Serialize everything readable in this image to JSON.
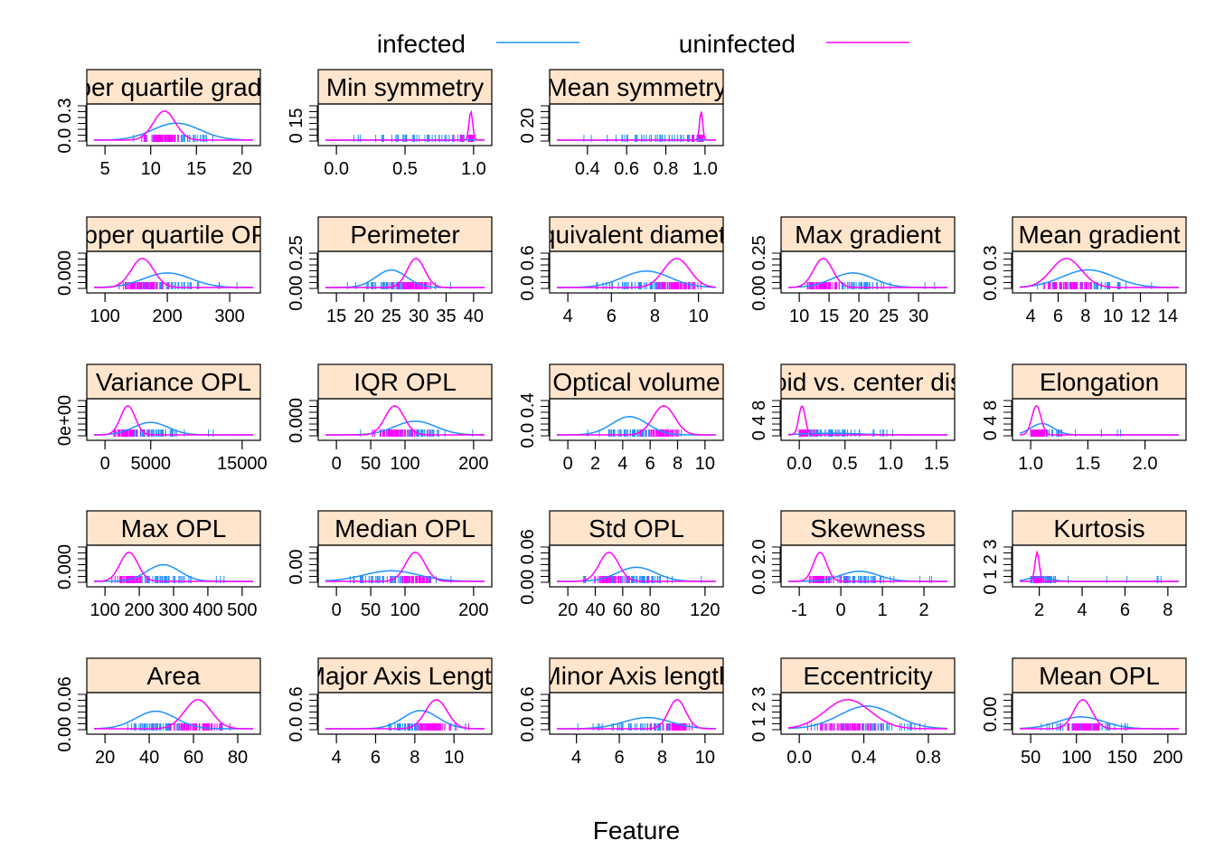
{
  "legend": {
    "placement": "top-center",
    "entries": [
      {
        "name": "infected",
        "color": "#1e90ff"
      },
      {
        "name": "uninfected",
        "color": "#ff00ff"
      }
    ]
  },
  "xlabel": "Feature",
  "strip_color": "#ffe5cc",
  "chart_data": [
    {
      "type": "line",
      "title": "Upper quartile gradient",
      "xticks": [
        "5",
        "10",
        "15",
        "20"
      ],
      "yticks": [
        "0.0",
        "0.3"
      ],
      "infected": {
        "peak_x": 12.8,
        "peak_y": 0.21,
        "spread": 2.6,
        "rug": [
          8,
          18.5
        ]
      },
      "uninfected": {
        "peak_x": 11.5,
        "peak_y": 0.36,
        "spread": 1.2,
        "rug": [
          9,
          13
        ]
      }
    },
    {
      "type": "line",
      "title": "Min symmetry",
      "xticks": [
        "0.0",
        "0.5",
        "1.0"
      ],
      "yticks": [
        "0",
        "15"
      ],
      "infected": {
        "peak_x": 0.7,
        "peak_y": 0.3,
        "spread": 0.3,
        "rug": [
          0,
          0.97
        ]
      },
      "uninfected": {
        "peak_x": 0.98,
        "peak_y": 28,
        "spread": 0.013,
        "rug": [
          0.82,
          1.0
        ]
      }
    },
    {
      "type": "line",
      "title": "Mean symmetry",
      "xticks": [
        "0.4",
        "0.6",
        "0.8",
        "1.0"
      ],
      "yticks": [
        "0",
        "20"
      ],
      "infected": {
        "peak_x": 0.85,
        "peak_y": 0.5,
        "spread": 0.18,
        "rug": [
          0.3,
          0.98
        ]
      },
      "uninfected": {
        "peak_x": 0.98,
        "peak_y": 40,
        "spread": 0.008,
        "rug": [
          0.9,
          0.99
        ]
      }
    },
    null,
    null,
    {
      "type": "line",
      "title": "Upper quartile OPL",
      "xticks": [
        "100",
        "200",
        "300"
      ],
      "yticks": [
        "0.000"
      ],
      "infected": {
        "peak_x": 200,
        "peak_y": 0.006,
        "spread": 38,
        "rug": [
          115,
          320
        ]
      },
      "uninfected": {
        "peak_x": 160,
        "peak_y": 0.012,
        "spread": 18,
        "rug": [
          120,
          210
        ]
      }
    },
    {
      "type": "line",
      "title": "Perimeter",
      "xticks": [
        "15",
        "20",
        "25",
        "30",
        "35",
        "40"
      ],
      "yticks": [
        "0.00",
        "0.25"
      ],
      "infected": {
        "peak_x": 25,
        "peak_y": 0.15,
        "spread": 2.8,
        "rug": [
          17,
          36
        ]
      },
      "uninfected": {
        "peak_x": 29.5,
        "peak_y": 0.25,
        "spread": 1.6,
        "rug": [
          24,
          35
        ]
      }
    },
    {
      "type": "line",
      "title": "Equivalent diameter",
      "xticks": [
        "4",
        "6",
        "8",
        "10"
      ],
      "yticks": [
        "0.0",
        "0.6"
      ],
      "infected": {
        "peak_x": 7.6,
        "peak_y": 0.35,
        "spread": 1.1,
        "rug": [
          5,
          10
        ]
      },
      "uninfected": {
        "peak_x": 9,
        "peak_y": 0.62,
        "spread": 0.6,
        "rug": [
          7.2,
          10.3
        ]
      }
    },
    {
      "type": "line",
      "title": "Max gradient",
      "xticks": [
        "10",
        "15",
        "20",
        "25",
        "30"
      ],
      "yticks": [
        "0.00",
        "0.25"
      ],
      "infected": {
        "peak_x": 19,
        "peak_y": 0.12,
        "spread": 3.5,
        "rug": [
          11,
          33
        ]
      },
      "uninfected": {
        "peak_x": 14,
        "peak_y": 0.24,
        "spread": 1.6,
        "rug": [
          11,
          20
        ]
      }
    },
    {
      "type": "line",
      "title": "Mean gradient",
      "xticks": [
        "4",
        "6",
        "8",
        "10",
        "12",
        "14"
      ],
      "yticks": [
        "0.0",
        "0.3"
      ],
      "infected": {
        "peak_x": 8.2,
        "peak_y": 0.2,
        "spread": 1.9,
        "rug": [
          4.5,
          13
        ]
      },
      "uninfected": {
        "peak_x": 6.6,
        "peak_y": 0.33,
        "spread": 1.1,
        "rug": [
          4.5,
          9
        ]
      }
    },
    {
      "type": "line",
      "title": "Variance OPL",
      "xticks": [
        "0",
        "5000",
        "15000"
      ],
      "yticks": [
        "0e+00"
      ],
      "infected": {
        "peak_x": 5000,
        "peak_y": 0.00015,
        "spread": 1900,
        "rug": [
          1000,
          13500
        ]
      },
      "uninfected": {
        "peak_x": 2500,
        "peak_y": 0.00035,
        "spread": 800,
        "rug": [
          1000,
          6000
        ]
      }
    },
    {
      "type": "line",
      "title": "IQR OPL",
      "xticks": [
        "0",
        "50",
        "100",
        "200"
      ],
      "yticks": [
        "0.000"
      ],
      "infected": {
        "peak_x": 115,
        "peak_y": 0.008,
        "spread": 30,
        "rug": [
          30,
          200
        ]
      },
      "uninfected": {
        "peak_x": 85,
        "peak_y": 0.017,
        "spread": 14,
        "rug": [
          45,
          140
        ]
      }
    },
    {
      "type": "line",
      "title": "Optical volume",
      "xticks": [
        "0",
        "2",
        "4",
        "6",
        "8",
        "10"
      ],
      "yticks": [
        "0.0",
        "0.4"
      ],
      "infected": {
        "peak_x": 4.5,
        "peak_y": 0.27,
        "spread": 1.3,
        "rug": [
          1.3,
          8.5
        ]
      },
      "uninfected": {
        "peak_x": 7,
        "peak_y": 0.43,
        "spread": 0.8,
        "rug": [
          4.8,
          8.8
        ]
      }
    },
    {
      "type": "line",
      "title": "Centroid vs. center distance",
      "xticks": [
        "0.0",
        "0.5",
        "1.0",
        "1.5"
      ],
      "yticks": [
        "0",
        "4",
        "8"
      ],
      "infected": {
        "peak_x": 0.35,
        "peak_y": 0.5,
        "spread": 0.3,
        "rug": [
          0.05,
          1.5
        ]
      },
      "uninfected": {
        "peak_x": 0.03,
        "peak_y": 8.5,
        "spread": 0.035,
        "rug": [
          0.0,
          0.22
        ]
      }
    },
    {
      "type": "line",
      "title": "Elongation",
      "xticks": [
        "1.0",
        "1.5",
        "2.0"
      ],
      "yticks": [
        "0",
        "4",
        "8"
      ],
      "infected": {
        "peak_x": 1.1,
        "peak_y": 3.3,
        "spread": 0.1,
        "rug": [
          1.02,
          2.2
        ]
      },
      "uninfected": {
        "peak_x": 1.05,
        "peak_y": 8.5,
        "spread": 0.04,
        "rug": [
          1.0,
          1.3
        ]
      }
    },
    {
      "type": "line",
      "title": "Max OPL",
      "xticks": [
        "100",
        "200",
        "300",
        "400",
        "500"
      ],
      "yticks": [
        "0.000"
      ],
      "infected": {
        "peak_x": 270,
        "peak_y": 0.006,
        "spread": 48,
        "rug": [
          150,
          450
        ]
      },
      "uninfected": {
        "peak_x": 170,
        "peak_y": 0.0105,
        "spread": 26,
        "rug": [
          120,
          260
        ]
      }
    },
    {
      "type": "line",
      "title": "Median OPL",
      "xticks": [
        "0",
        "50",
        "100",
        "200"
      ],
      "yticks": [
        "0.00"
      ],
      "infected": {
        "peak_x": 80,
        "peak_y": 0.008,
        "spread": 40,
        "rug": [
          20,
          170
        ]
      },
      "uninfected": {
        "peak_x": 115,
        "peak_y": 0.022,
        "spread": 14,
        "rug": [
          75,
          160
        ]
      }
    },
    {
      "type": "line",
      "title": "Std OPL",
      "xticks": [
        "20",
        "40",
        "60",
        "80",
        "120"
      ],
      "yticks": [
        "0.00",
        "0.06"
      ],
      "infected": {
        "peak_x": 70,
        "peak_y": 0.03,
        "spread": 14,
        "rug": [
          30,
          120
        ]
      },
      "uninfected": {
        "peak_x": 50,
        "peak_y": 0.062,
        "spread": 7,
        "rug": [
          30,
          80
        ]
      }
    },
    {
      "type": "line",
      "title": "Skewness",
      "xticks": [
        "-1",
        "0",
        "1",
        "2"
      ],
      "yticks": [
        "0.0",
        "2.0"
      ],
      "infected": {
        "peak_x": 0.45,
        "peak_y": 0.8,
        "spread": 0.45,
        "rug": [
          -0.6,
          2.3
        ]
      },
      "uninfected": {
        "peak_x": -0.5,
        "peak_y": 2.3,
        "spread": 0.16,
        "rug": [
          -0.8,
          0.2
        ]
      }
    },
    {
      "type": "line",
      "title": "Kurtosis",
      "xticks": [
        "2",
        "4",
        "6",
        "8"
      ],
      "yticks": [
        "0",
        "1",
        "2",
        "3"
      ],
      "infected": {
        "peak_x": 2.0,
        "peak_y": 0.5,
        "spread": 0.5,
        "rug": [
          1.6,
          8
        ]
      },
      "uninfected": {
        "peak_x": 1.9,
        "peak_y": 3.3,
        "spread": 0.1,
        "rug": [
          1.6,
          2.8
        ]
      }
    },
    {
      "type": "line",
      "title": "Area",
      "xticks": [
        "20",
        "40",
        "60",
        "80"
      ],
      "yticks": [
        "0.00",
        "0.06"
      ],
      "infected": {
        "peak_x": 43,
        "peak_y": 0.038,
        "spread": 9,
        "rug": [
          20,
          75
        ]
      },
      "uninfected": {
        "peak_x": 62,
        "peak_y": 0.063,
        "spread": 6,
        "rug": [
          40,
          82
        ]
      }
    },
    {
      "type": "line",
      "title": "Major Axis Length",
      "xticks": [
        "4",
        "6",
        "8",
        "10"
      ],
      "yticks": [
        "0.0",
        "0.6"
      ],
      "infected": {
        "peak_x": 8.3,
        "peak_y": 0.45,
        "spread": 0.9,
        "rug": [
          5,
          11
        ]
      },
      "uninfected": {
        "peak_x": 9.1,
        "peak_y": 0.72,
        "spread": 0.55,
        "rug": [
          7,
          11
        ]
      }
    },
    {
      "type": "line",
      "title": "Minor Axis length",
      "xticks": [
        "4",
        "6",
        "8",
        "10"
      ],
      "yticks": [
        "0.0",
        "0.6"
      ],
      "infected": {
        "peak_x": 7.3,
        "peak_y": 0.3,
        "spread": 1.1,
        "rug": [
          3.6,
          9
        ]
      },
      "uninfected": {
        "peak_x": 8.7,
        "peak_y": 0.78,
        "spread": 0.4,
        "rug": [
          7,
          9.7
        ]
      }
    },
    {
      "type": "line",
      "title": "Eccentricity",
      "xticks": [
        "0.0",
        "0.4",
        "0.8"
      ],
      "yticks": [
        "0",
        "1",
        "2",
        "3"
      ],
      "infected": {
        "peak_x": 0.42,
        "peak_y": 2.5,
        "spread": 0.17,
        "rug": [
          0.05,
          0.85
        ]
      },
      "uninfected": {
        "peak_x": 0.3,
        "peak_y": 3.2,
        "spread": 0.14,
        "rug": [
          0.05,
          0.75
        ]
      }
    },
    {
      "type": "line",
      "title": "Mean OPL",
      "xticks": [
        "50",
        "100",
        "150",
        "200"
      ],
      "yticks": [
        "0.00"
      ],
      "infected": {
        "peak_x": 105,
        "peak_y": 0.011,
        "spread": 25,
        "rug": [
          50,
          165
        ]
      },
      "uninfected": {
        "peak_x": 107,
        "peak_y": 0.027,
        "spread": 10,
        "rug": [
          75,
          145
        ]
      }
    }
  ]
}
